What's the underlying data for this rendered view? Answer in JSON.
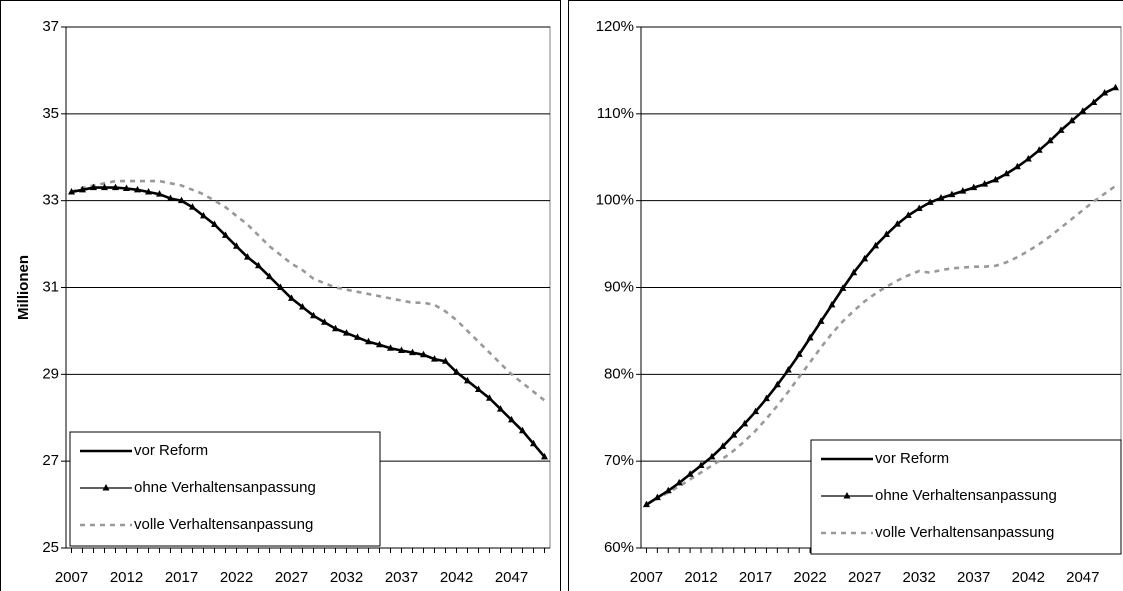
{
  "chart_data": [
    {
      "type": "line",
      "y_label": "Millionen",
      "legend_position": "lower left",
      "grid": true,
      "x": [
        2007,
        2008,
        2009,
        2010,
        2011,
        2012,
        2013,
        2014,
        2015,
        2016,
        2017,
        2018,
        2019,
        2020,
        2021,
        2022,
        2023,
        2024,
        2025,
        2026,
        2027,
        2028,
        2029,
        2030,
        2031,
        2032,
        2033,
        2034,
        2035,
        2036,
        2037,
        2038,
        2039,
        2040,
        2041,
        2042,
        2043,
        2044,
        2045,
        2046,
        2047,
        2048,
        2049,
        2050
      ],
      "xlim": [
        2006.5,
        2050.5
      ],
      "xticks": [
        2007,
        2012,
        2017,
        2022,
        2027,
        2032,
        2037,
        2042,
        2047
      ],
      "ylim": [
        25,
        37
      ],
      "yticks": [
        25,
        27,
        29,
        31,
        33,
        35,
        37
      ],
      "series": [
        {
          "name": "vor Reform",
          "color": "#000000",
          "style": "thick",
          "values": [
            33.2,
            33.25,
            33.3,
            33.3,
            33.3,
            33.28,
            33.25,
            33.2,
            33.15,
            33.05,
            33.0,
            32.85,
            32.65,
            32.45,
            32.2,
            31.95,
            31.7,
            31.5,
            31.25,
            31.0,
            30.75,
            30.55,
            30.35,
            30.2,
            30.05,
            29.95,
            29.85,
            29.75,
            29.68,
            29.6,
            29.55,
            29.5,
            29.45,
            29.35,
            29.3,
            29.05,
            28.85,
            28.65,
            28.45,
            28.2,
            27.95,
            27.7,
            27.4,
            27.1
          ]
        },
        {
          "name": "ohne Verhaltensanpassung",
          "color": "#000000",
          "style": "triangle",
          "values": [
            33.2,
            33.25,
            33.3,
            33.3,
            33.3,
            33.28,
            33.25,
            33.2,
            33.15,
            33.05,
            33.0,
            32.85,
            32.65,
            32.45,
            32.2,
            31.95,
            31.7,
            31.5,
            31.25,
            31.0,
            30.75,
            30.55,
            30.35,
            30.2,
            30.05,
            29.95,
            29.85,
            29.75,
            29.68,
            29.6,
            29.55,
            29.5,
            29.45,
            29.35,
            29.3,
            29.05,
            28.85,
            28.65,
            28.45,
            28.2,
            27.95,
            27.7,
            27.4,
            27.1
          ]
        },
        {
          "name": "volle Verhaltensanpassung",
          "color": "#999999",
          "style": "dashed",
          "values": [
            33.2,
            33.3,
            33.35,
            33.4,
            33.45,
            33.45,
            33.45,
            33.45,
            33.45,
            33.4,
            33.35,
            33.25,
            33.15,
            33.0,
            32.85,
            32.65,
            32.45,
            32.2,
            31.95,
            31.75,
            31.55,
            31.4,
            31.2,
            31.1,
            31.0,
            30.95,
            30.9,
            30.85,
            30.8,
            30.75,
            30.7,
            30.65,
            30.65,
            30.6,
            30.45,
            30.25,
            30.0,
            29.75,
            29.5,
            29.25,
            29.0,
            28.8,
            28.6,
            28.4
          ]
        }
      ]
    },
    {
      "type": "line",
      "legend_position": "lower right",
      "grid": true,
      "x": [
        2007,
        2008,
        2009,
        2010,
        2011,
        2012,
        2013,
        2014,
        2015,
        2016,
        2017,
        2018,
        2019,
        2020,
        2021,
        2022,
        2023,
        2024,
        2025,
        2026,
        2027,
        2028,
        2029,
        2030,
        2031,
        2032,
        2033,
        2034,
        2035,
        2036,
        2037,
        2038,
        2039,
        2040,
        2041,
        2042,
        2043,
        2044,
        2045,
        2046,
        2047,
        2048,
        2049,
        2050
      ],
      "xlim": [
        2006.5,
        2050.5
      ],
      "xticks": [
        2007,
        2012,
        2017,
        2022,
        2027,
        2032,
        2037,
        2042,
        2047
      ],
      "ylim": [
        60,
        120
      ],
      "yticks": [
        {
          "value": 60,
          "label": "60%"
        },
        {
          "value": 70,
          "label": "70%"
        },
        {
          "value": 80,
          "label": "80%"
        },
        {
          "value": 90,
          "label": "90%"
        },
        {
          "value": 100,
          "label": "100%"
        },
        {
          "value": 110,
          "label": "110%"
        },
        {
          "value": 120,
          "label": "120%"
        }
      ],
      "series": [
        {
          "name": "vor Reform",
          "color": "#000000",
          "style": "thick",
          "values": [
            65,
            65.8,
            66.6,
            67.5,
            68.5,
            69.5,
            70.5,
            71.7,
            73,
            74.3,
            75.7,
            77.2,
            78.8,
            80.5,
            82.3,
            84.2,
            86.1,
            88.0,
            89.9,
            91.7,
            93.3,
            94.8,
            96.1,
            97.3,
            98.3,
            99.1,
            99.8,
            100.3,
            100.7,
            101.1,
            101.5,
            101.9,
            102.4,
            103.1,
            103.9,
            104.8,
            105.8,
            106.9,
            108.1,
            109.2,
            110.3,
            111.3,
            112.4,
            113
          ]
        },
        {
          "name": "ohne Verhaltensanpassung",
          "color": "#000000",
          "style": "triangle",
          "values": [
            65,
            65.8,
            66.6,
            67.5,
            68.5,
            69.5,
            70.5,
            71.7,
            73,
            74.3,
            75.7,
            77.2,
            78.8,
            80.5,
            82.3,
            84.2,
            86.1,
            88.0,
            89.9,
            91.7,
            93.3,
            94.8,
            96.1,
            97.3,
            98.3,
            99.1,
            99.8,
            100.3,
            100.7,
            101.1,
            101.5,
            101.9,
            102.4,
            103.1,
            103.9,
            104.8,
            105.8,
            106.9,
            108.1,
            109.2,
            110.3,
            111.3,
            112.4,
            113
          ]
        },
        {
          "name": "volle Verhaltensanpassung",
          "color": "#999999",
          "style": "dashed",
          "values": [
            65,
            65.7,
            66.4,
            67.1,
            67.9,
            68.7,
            69.5,
            70.3,
            71.2,
            72.3,
            73.5,
            74.9,
            76.4,
            78,
            79.7,
            81.4,
            83.1,
            84.7,
            86.1,
            87.3,
            88.4,
            89.3,
            90.1,
            90.8,
            91.4,
            91.9,
            91.7,
            92.0,
            92.2,
            92.3,
            92.4,
            92.4,
            92.5,
            92.9,
            93.5,
            94.2,
            95,
            95.9,
            96.9,
            97.9,
            98.9,
            99.9,
            100.8,
            101.7
          ]
        }
      ]
    }
  ]
}
